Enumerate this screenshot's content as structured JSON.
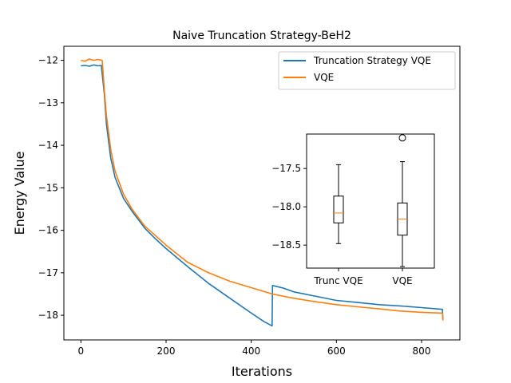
{
  "chart_data": [
    {
      "type": "line",
      "title": "Naive Truncation Strategy-BeH2",
      "xlabel": "Iterations",
      "ylabel": "Energy Value",
      "xlim": [
        -40,
        890
      ],
      "ylim": [
        -18.58,
        -11.67
      ],
      "x_ticks": [
        0,
        200,
        400,
        600,
        800
      ],
      "y_ticks": [
        -12,
        -13,
        -14,
        -15,
        -16,
        -17,
        -18
      ],
      "x_tick_labels": [
        "0",
        "200",
        "400",
        "600",
        "800"
      ],
      "y_tick_labels": [
        "−12",
        "−13",
        "−14",
        "−15",
        "−16",
        "−17",
        "−18"
      ],
      "grid": false,
      "legend_position": "upper-right",
      "series": [
        {
          "name": "Truncation Strategy VQE",
          "color": "#1f77b4",
          "points": [
            [
              0,
              -12.13
            ],
            [
              10,
              -12.12
            ],
            [
              20,
              -12.14
            ],
            [
              30,
              -12.11
            ],
            [
              40,
              -12.13
            ],
            [
              48,
              -12.12
            ],
            [
              55,
              -12.8
            ],
            [
              60,
              -13.5
            ],
            [
              70,
              -14.3
            ],
            [
              80,
              -14.75
            ],
            [
              90,
              -15.0
            ],
            [
              100,
              -15.25
            ],
            [
              120,
              -15.55
            ],
            [
              150,
              -15.95
            ],
            [
              175,
              -16.2
            ],
            [
              200,
              -16.43
            ],
            [
              250,
              -16.85
            ],
            [
              300,
              -17.25
            ],
            [
              350,
              -17.6
            ],
            [
              400,
              -17.95
            ],
            [
              430,
              -18.15
            ],
            [
              449,
              -18.25
            ],
            [
              450,
              -17.3
            ],
            [
              475,
              -17.36
            ],
            [
              500,
              -17.45
            ],
            [
              550,
              -17.55
            ],
            [
              600,
              -17.65
            ],
            [
              650,
              -17.7
            ],
            [
              700,
              -17.75
            ],
            [
              750,
              -17.78
            ],
            [
              800,
              -17.82
            ],
            [
              849,
              -17.86
            ],
            [
              850,
              -18.1
            ]
          ]
        },
        {
          "name": "VQE",
          "color": "#ff7f0e",
          "points": [
            [
              0,
              -12.0
            ],
            [
              10,
              -12.02
            ],
            [
              20,
              -11.97
            ],
            [
              30,
              -12.0
            ],
            [
              40,
              -11.98
            ],
            [
              50,
              -12.0
            ],
            [
              55,
              -12.7
            ],
            [
              60,
              -13.3
            ],
            [
              70,
              -14.1
            ],
            [
              80,
              -14.6
            ],
            [
              100,
              -15.15
            ],
            [
              120,
              -15.5
            ],
            [
              150,
              -15.9
            ],
            [
              200,
              -16.35
            ],
            [
              250,
              -16.75
            ],
            [
              300,
              -17.0
            ],
            [
              350,
              -17.2
            ],
            [
              400,
              -17.35
            ],
            [
              450,
              -17.5
            ],
            [
              500,
              -17.6
            ],
            [
              550,
              -17.68
            ],
            [
              600,
              -17.75
            ],
            [
              650,
              -17.8
            ],
            [
              700,
              -17.85
            ],
            [
              750,
              -17.9
            ],
            [
              800,
              -17.93
            ],
            [
              849,
              -17.95
            ],
            [
              850,
              -18.12
            ]
          ]
        }
      ]
    },
    {
      "type": "box",
      "categories": [
        "Trunc VQE",
        "VQE"
      ],
      "ylim": [
        -18.8,
        -17.05
      ],
      "y_ticks": [
        -17.5,
        -18.0,
        -18.5
      ],
      "y_tick_labels": [
        "−17.5",
        "−18.0",
        "−18.5"
      ],
      "median_color": "#ff7f0e",
      "boxes": [
        {
          "name": "Trunc VQE",
          "whisker_high": -17.45,
          "q3": -17.86,
          "median": -18.08,
          "q1": -18.21,
          "whisker_low": -18.48,
          "outliers": []
        },
        {
          "name": "VQE",
          "whisker_high": -17.41,
          "q3": -17.95,
          "median": -18.16,
          "q1": -18.37,
          "whisker_low": -18.78,
          "outliers": [
            -17.1
          ]
        }
      ]
    }
  ]
}
